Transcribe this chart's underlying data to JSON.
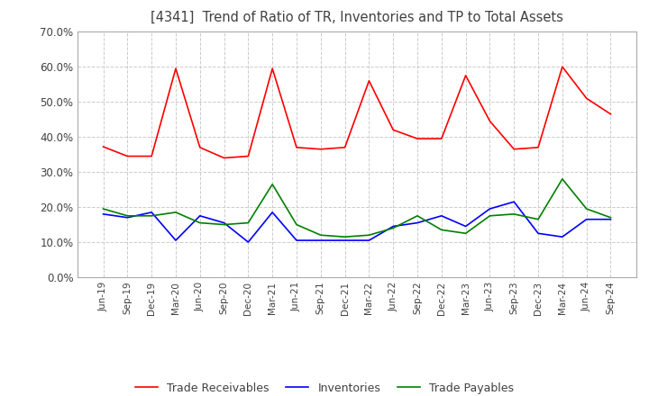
{
  "title": "[4341]  Trend of Ratio of TR, Inventories and TP to Total Assets",
  "ylim": [
    0.0,
    0.7
  ],
  "yticks": [
    0.0,
    0.1,
    0.2,
    0.3,
    0.4,
    0.5,
    0.6,
    0.7
  ],
  "x_labels": [
    "Jun-19",
    "Sep-19",
    "Dec-19",
    "Mar-20",
    "Jun-20",
    "Sep-20",
    "Dec-20",
    "Mar-21",
    "Jun-21",
    "Sep-21",
    "Dec-21",
    "Mar-22",
    "Jun-22",
    "Sep-22",
    "Dec-22",
    "Mar-23",
    "Jun-23",
    "Sep-23",
    "Dec-23",
    "Mar-24",
    "Jun-24",
    "Sep-24"
  ],
  "trade_receivables": [
    0.372,
    0.345,
    0.345,
    0.595,
    0.37,
    0.34,
    0.345,
    0.595,
    0.37,
    0.365,
    0.37,
    0.56,
    0.42,
    0.395,
    0.395,
    0.575,
    0.445,
    0.365,
    0.37,
    0.6,
    0.51,
    0.465
  ],
  "inventories": [
    0.18,
    0.17,
    0.185,
    0.105,
    0.175,
    0.155,
    0.1,
    0.185,
    0.105,
    0.105,
    0.105,
    0.105,
    0.145,
    0.155,
    0.175,
    0.145,
    0.195,
    0.215,
    0.125,
    0.115,
    0.165,
    0.165
  ],
  "trade_payables": [
    0.195,
    0.175,
    0.175,
    0.185,
    0.155,
    0.15,
    0.155,
    0.265,
    0.15,
    0.12,
    0.115,
    0.12,
    0.14,
    0.175,
    0.135,
    0.125,
    0.175,
    0.18,
    0.165,
    0.28,
    0.195,
    0.17
  ],
  "tr_color": "#FF0000",
  "inv_color": "#0000FF",
  "tp_color": "#008000",
  "background_color": "#FFFFFF",
  "grid_color": "#CCCCCC",
  "title_color": "#404040",
  "legend_labels": [
    "Trade Receivables",
    "Inventories",
    "Trade Payables"
  ]
}
